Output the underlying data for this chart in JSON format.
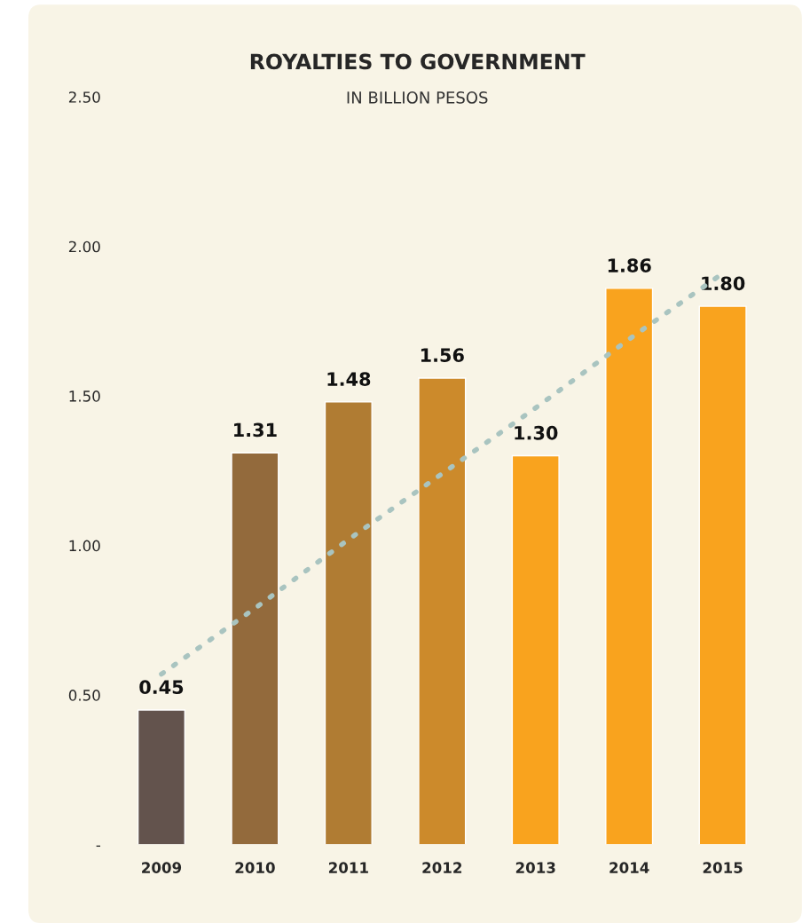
{
  "chart_data": {
    "type": "bar",
    "title": "ROYALTIES TO GOVERNMENT",
    "subtitle": "IN BILLION PESOS",
    "categories": [
      "2009",
      "2010",
      "2011",
      "2012",
      "2013",
      "2014",
      "2015"
    ],
    "series": [
      {
        "values": [
          0.45,
          1.31,
          1.48,
          1.56,
          1.3,
          1.86,
          1.8
        ],
        "value_labels": [
          "0.45",
          "1.31",
          "1.48",
          "1.56",
          "1.30",
          "1.86",
          "1.80"
        ],
        "colors": [
          "#63534d",
          "#936a3c",
          "#b07c33",
          "#cc8a2b",
          "#f9a31e",
          "#f9a31e",
          "#f9a31e"
        ]
      },
      {
        "type": "line",
        "values": [
          0.57,
          0.79,
          1.02,
          1.24,
          1.46,
          1.69,
          1.91
        ],
        "color": "#a9c4c0",
        "line_style": "dotted"
      }
    ],
    "ylim": [
      0,
      2.5
    ],
    "yticks": [
      {
        "value": 0,
        "label": "-"
      },
      {
        "value": 0.5,
        "label": "0.50"
      },
      {
        "value": 1.0,
        "label": "1.00"
      },
      {
        "value": 1.5,
        "label": "1.50"
      },
      {
        "value": 2.0,
        "label": "2.00"
      },
      {
        "value": 2.5,
        "label": "2.50"
      }
    ],
    "grid": false,
    "legend": false
  }
}
